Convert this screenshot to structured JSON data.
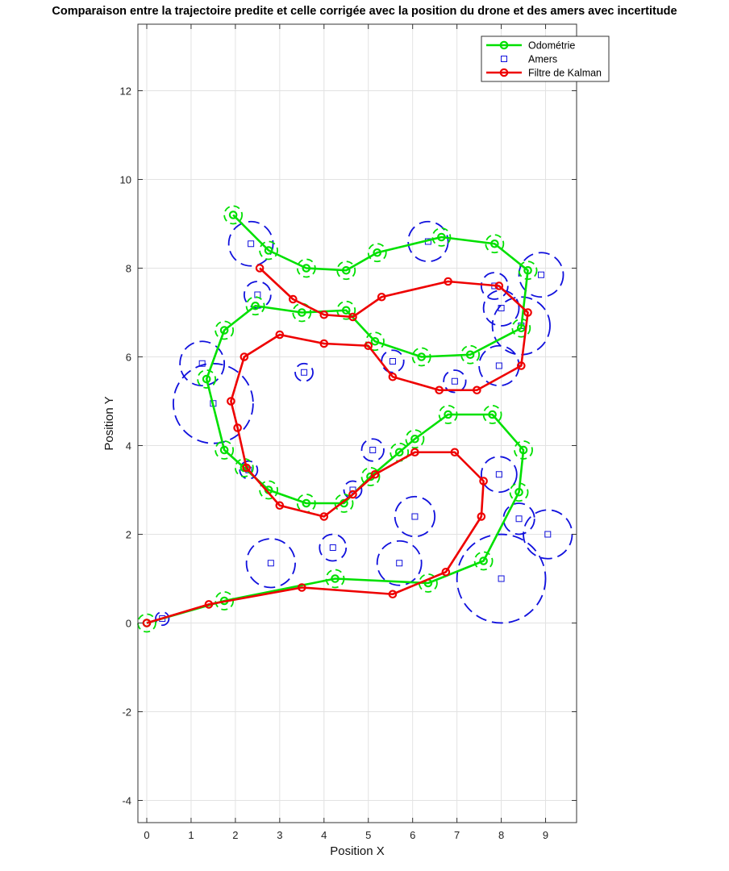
{
  "chart_data": {
    "type": "line",
    "title": "Comparaison entre la trajectoire predite et celle corrigée avec la position du drone et des amers avec incertitude",
    "xlabel": "Position X",
    "ylabel": "Position Y",
    "xlim": [
      -0.2,
      9.7
    ],
    "ylim": [
      -4.5,
      13.5
    ],
    "xticks": [
      0,
      1,
      2,
      3,
      4,
      5,
      6,
      7,
      8,
      9
    ],
    "yticks": [
      -4,
      -2,
      0,
      2,
      4,
      6,
      8,
      10,
      12
    ],
    "grid": true,
    "legend_location": "top-right",
    "colors": {
      "odometry": "#00e000",
      "landmarks": "#1010dd",
      "kalman": "#ee0000"
    },
    "series": [
      {
        "name": "Odométrie",
        "style": "line-circle-markers",
        "x": [
          0.0,
          1.75,
          4.25,
          6.35,
          7.6,
          8.4,
          8.5,
          7.8,
          6.8,
          6.05,
          5.7,
          5.05,
          4.45,
          3.6,
          2.75,
          2.2,
          1.75,
          1.35,
          1.75,
          2.45,
          3.5,
          4.5,
          5.15,
          6.2,
          7.3,
          8.45,
          8.6,
          7.85,
          6.65,
          5.2,
          4.5,
          3.6,
          2.75,
          1.95
        ],
        "y": [
          0.0,
          0.5,
          1.0,
          0.9,
          1.4,
          2.95,
          3.9,
          4.7,
          4.7,
          4.15,
          3.85,
          3.3,
          2.7,
          2.7,
          3.0,
          3.5,
          3.9,
          5.5,
          6.6,
          7.15,
          7.0,
          7.05,
          6.35,
          6.0,
          6.05,
          6.65,
          7.95,
          8.55,
          8.7,
          8.35,
          7.95,
          8.0,
          8.4,
          9.2
        ]
      },
      {
        "name": "Amers",
        "style": "square-markers-with-uncertainty-circles",
        "x": [
          0.35,
          2.8,
          4.2,
          5.7,
          6.05,
          8.0,
          9.05,
          8.4,
          7.95,
          4.65,
          5.1,
          2.3,
          1.5,
          1.25,
          3.55,
          5.55,
          6.95,
          7.95,
          8.0,
          8.45,
          7.85,
          8.9,
          2.5,
          2.35,
          6.35
        ],
        "y": [
          0.1,
          1.35,
          1.7,
          1.35,
          2.4,
          1.0,
          2.0,
          2.35,
          3.35,
          3.0,
          3.9,
          3.45,
          4.95,
          5.85,
          5.65,
          5.9,
          5.45,
          5.8,
          7.1,
          6.7,
          7.6,
          7.85,
          7.4,
          8.55,
          8.6
        ],
        "uncertainty_radius": [
          0.15,
          0.55,
          0.3,
          0.5,
          0.45,
          1.0,
          0.55,
          0.35,
          0.4,
          0.2,
          0.25,
          0.2,
          0.9,
          0.5,
          0.2,
          0.25,
          0.25,
          0.45,
          0.4,
          0.65,
          0.3,
          0.5,
          0.3,
          0.5,
          0.45
        ]
      },
      {
        "name": "Filtre de Kalman",
        "style": "line-circle-markers",
        "x": [
          0.0,
          1.4,
          3.5,
          5.55,
          6.75,
          7.55,
          7.6,
          6.95,
          6.05,
          5.15,
          4.65,
          4.0,
          3.0,
          2.25,
          2.05,
          1.9,
          2.2,
          3.0,
          4.0,
          5.0,
          5.55,
          6.6,
          7.45,
          8.45,
          8.6,
          7.95,
          6.8,
          5.3,
          4.65,
          4.0,
          3.3,
          2.55
        ],
        "y": [
          0.0,
          0.42,
          0.8,
          0.65,
          1.15,
          2.4,
          3.2,
          3.85,
          3.85,
          3.35,
          2.9,
          2.4,
          2.65,
          3.5,
          4.4,
          5.0,
          6.0,
          6.5,
          6.3,
          6.25,
          5.55,
          5.25,
          5.25,
          5.8,
          7.0,
          7.6,
          7.7,
          7.35,
          6.9,
          6.95,
          7.3,
          8.0
        ]
      }
    ]
  }
}
